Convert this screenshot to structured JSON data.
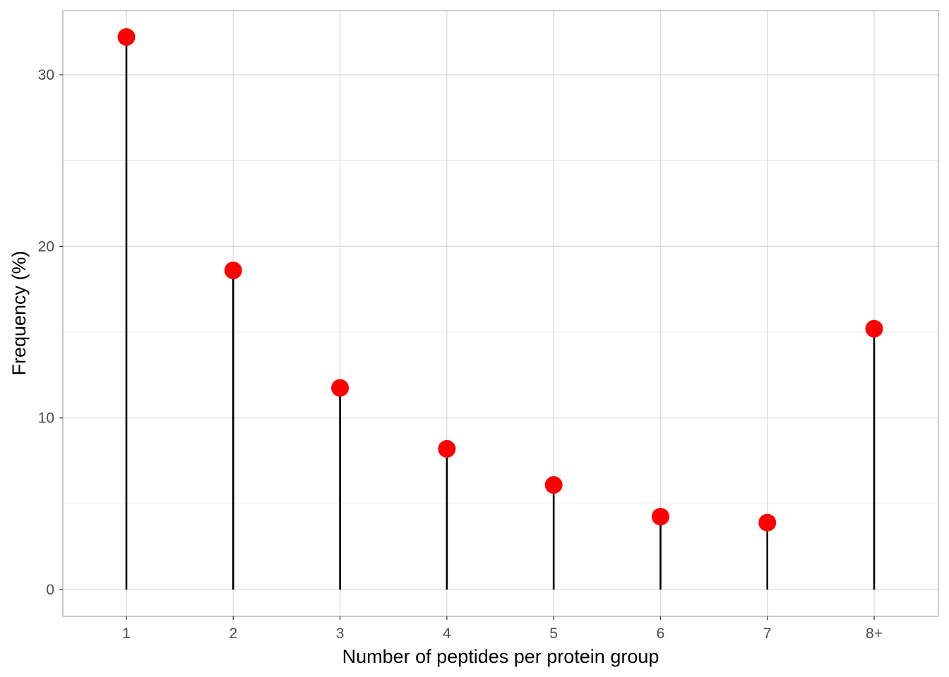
{
  "chart_data": {
    "type": "lollipop",
    "title": "",
    "xlabel": "Number of peptides per protein group",
    "ylabel": "Frequency (%)",
    "categories": [
      "1",
      "2",
      "3",
      "4",
      "5",
      "6",
      "7",
      "8+"
    ],
    "values": [
      32.2,
      18.6,
      11.75,
      8.2,
      6.1,
      4.25,
      3.9,
      15.2
    ],
    "ylim": [
      -1.56,
      33.74
    ],
    "yticks": [
      0,
      10,
      20,
      30
    ],
    "grid": true,
    "point_color": "#ff0000",
    "stem_color": "#000000"
  }
}
